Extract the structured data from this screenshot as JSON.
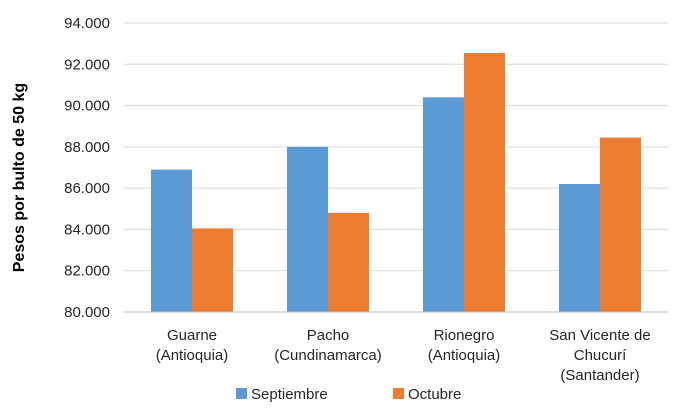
{
  "chart_data": {
    "type": "bar",
    "ylabel": "Pesos por bulto de 50 kg",
    "ylim": [
      80000,
      94000
    ],
    "yticks": [
      80000,
      82000,
      84000,
      86000,
      88000,
      90000,
      92000,
      94000
    ],
    "ytick_labels": [
      "80.000",
      "82.000",
      "84.000",
      "86.000",
      "88.000",
      "90.000",
      "92.000",
      "94.000"
    ],
    "grid": true,
    "legend_position": "bottom",
    "categories": [
      [
        "Guarne",
        "(Antioquia)"
      ],
      [
        "Pacho",
        "(Cundinamarca)"
      ],
      [
        "Rionegro",
        "(Antioquia)"
      ],
      [
        "San Vicente de",
        "Chucurí",
        "(Santander)"
      ]
    ],
    "series": [
      {
        "name": "Septiembre",
        "color": "#5B9BD5",
        "values": [
          86900,
          88000,
          90400,
          86200
        ]
      },
      {
        "name": "Octubre",
        "color": "#ED7D31",
        "values": [
          84050,
          84800,
          92550,
          88450
        ]
      }
    ]
  }
}
